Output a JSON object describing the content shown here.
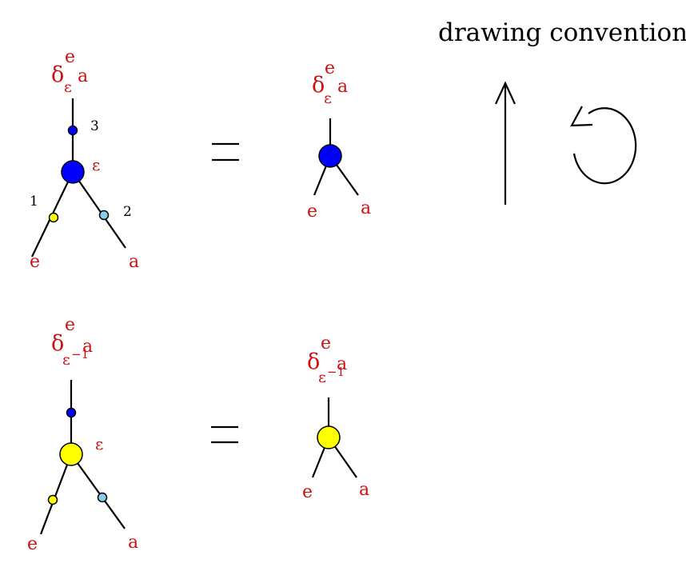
{
  "title": "drawing  convention",
  "colors": {
    "label": "#cc1111",
    "blue_node": "#0000ff",
    "yellow_node": "#ffff00",
    "light_blue_node": "#87ceeb",
    "line": "#000000"
  },
  "row1": {
    "left": {
      "delta": "δ",
      "sup": "e",
      "sub": "ε",
      "sub_right": "a",
      "node_label": "ε",
      "num_top": "3",
      "num_left": "1",
      "num_right": "2",
      "leg_left": "e",
      "leg_right": "a"
    },
    "equals": "=",
    "right": {
      "delta": "δ",
      "sup": "e",
      "sub": "ε",
      "sub_right": "a",
      "leg_left": "e",
      "leg_right": "a"
    }
  },
  "row2": {
    "left": {
      "delta": "δ",
      "sup": "e",
      "sub": "ε",
      "sub_exp": "−1",
      "sub_right": "a",
      "node_label": "ε",
      "leg_left": "e",
      "leg_right": "a"
    },
    "equals": "=",
    "right": {
      "delta": "δ",
      "sup": "e",
      "sub": "ε",
      "sub_exp": "−1",
      "sub_right": "a",
      "leg_left": "e",
      "leg_right": "a"
    }
  },
  "convention": {
    "up_arrow_icon": "arrow-up-icon",
    "rotation_icon": "counterclockwise-arrow-icon"
  }
}
